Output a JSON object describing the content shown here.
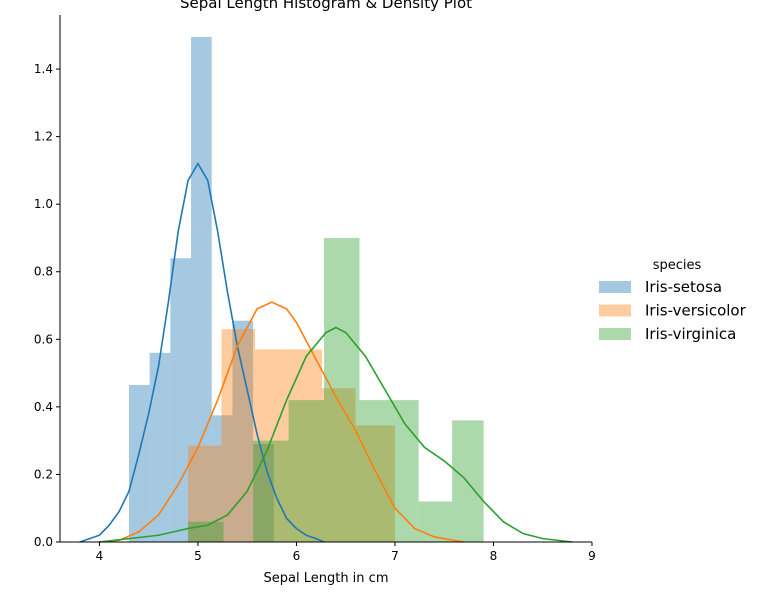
{
  "chart_data": {
    "type": "histogram-density",
    "title": "Sepal Length Histogram & Density Plot",
    "xlabel": "Sepal Length in cm",
    "ylabel": "",
    "xlim": [
      3.6,
      9.0
    ],
    "ylim": [
      0,
      1.56
    ],
    "xticks": [
      4,
      5,
      6,
      7,
      8,
      9
    ],
    "yticks": [
      0.0,
      0.2,
      0.4,
      0.6,
      0.8,
      1.0,
      1.2,
      1.4
    ],
    "grid": false,
    "legend": {
      "title": "species",
      "placement": "right"
    },
    "series": [
      {
        "name": "Iris-setosa",
        "color": "#1f77b4",
        "histogram": [
          {
            "x0": 4.3,
            "x1": 4.51,
            "density": 0.465
          },
          {
            "x0": 4.51,
            "x1": 4.72,
            "density": 0.56
          },
          {
            "x0": 4.72,
            "x1": 4.93,
            "density": 0.84
          },
          {
            "x0": 4.93,
            "x1": 5.14,
            "density": 1.495
          },
          {
            "x0": 5.14,
            "x1": 5.35,
            "density": 0.375
          },
          {
            "x0": 5.35,
            "x1": 5.56,
            "density": 0.655
          },
          {
            "x0": 5.56,
            "x1": 5.77,
            "density": 0.29
          }
        ],
        "density": [
          [
            3.8,
            0.0
          ],
          [
            3.9,
            0.01
          ],
          [
            4.0,
            0.02
          ],
          [
            4.1,
            0.05
          ],
          [
            4.2,
            0.09
          ],
          [
            4.3,
            0.15
          ],
          [
            4.4,
            0.26
          ],
          [
            4.5,
            0.38
          ],
          [
            4.6,
            0.52
          ],
          [
            4.7,
            0.71
          ],
          [
            4.8,
            0.92
          ],
          [
            4.9,
            1.07
          ],
          [
            5.0,
            1.12
          ],
          [
            5.1,
            1.07
          ],
          [
            5.2,
            0.92
          ],
          [
            5.3,
            0.74
          ],
          [
            5.4,
            0.58
          ],
          [
            5.5,
            0.45
          ],
          [
            5.6,
            0.32
          ],
          [
            5.7,
            0.21
          ],
          [
            5.8,
            0.13
          ],
          [
            5.9,
            0.07
          ],
          [
            6.0,
            0.04
          ],
          [
            6.1,
            0.02
          ],
          [
            6.2,
            0.01
          ],
          [
            6.28,
            0.0
          ]
        ]
      },
      {
        "name": "Iris-versicolor",
        "color": "#ff7f0e",
        "histogram": [
          {
            "x0": 4.9,
            "x1": 5.24,
            "density": 0.285
          },
          {
            "x0": 5.24,
            "x1": 5.58,
            "density": 0.63
          },
          {
            "x0": 5.58,
            "x1": 5.92,
            "density": 0.57
          },
          {
            "x0": 5.92,
            "x1": 6.26,
            "density": 0.57
          },
          {
            "x0": 6.26,
            "x1": 6.6,
            "density": 0.455
          },
          {
            "x0": 6.6,
            "x1": 7.0,
            "density": 0.345
          }
        ],
        "density": [
          [
            4.0,
            0.0
          ],
          [
            4.2,
            0.005
          ],
          [
            4.4,
            0.03
          ],
          [
            4.6,
            0.08
          ],
          [
            4.8,
            0.17
          ],
          [
            5.0,
            0.28
          ],
          [
            5.2,
            0.42
          ],
          [
            5.4,
            0.58
          ],
          [
            5.6,
            0.69
          ],
          [
            5.75,
            0.71
          ],
          [
            5.9,
            0.69
          ],
          [
            6.0,
            0.65
          ],
          [
            6.2,
            0.54
          ],
          [
            6.4,
            0.43
          ],
          [
            6.6,
            0.33
          ],
          [
            6.8,
            0.21
          ],
          [
            7.0,
            0.1
          ],
          [
            7.2,
            0.04
          ],
          [
            7.4,
            0.015
          ],
          [
            7.7,
            0.0
          ]
        ]
      },
      {
        "name": "Iris-virginica",
        "color": "#2ca02c",
        "histogram": [
          {
            "x0": 4.9,
            "x1": 5.26,
            "density": 0.06
          },
          {
            "x0": 5.56,
            "x1": 5.92,
            "density": 0.3
          },
          {
            "x0": 5.92,
            "x1": 6.28,
            "density": 0.42
          },
          {
            "x0": 6.28,
            "x1": 6.64,
            "density": 0.9
          },
          {
            "x0": 6.64,
            "x1": 7.24,
            "density": 0.42
          },
          {
            "x0": 7.24,
            "x1": 7.58,
            "density": 0.12
          },
          {
            "x0": 7.58,
            "x1": 7.9,
            "density": 0.36
          }
        ],
        "density": [
          [
            4.0,
            0.0
          ],
          [
            4.3,
            0.01
          ],
          [
            4.6,
            0.02
          ],
          [
            4.9,
            0.04
          ],
          [
            5.1,
            0.05
          ],
          [
            5.3,
            0.08
          ],
          [
            5.5,
            0.15
          ],
          [
            5.7,
            0.27
          ],
          [
            5.9,
            0.42
          ],
          [
            6.1,
            0.55
          ],
          [
            6.3,
            0.62
          ],
          [
            6.4,
            0.635
          ],
          [
            6.5,
            0.62
          ],
          [
            6.7,
            0.55
          ],
          [
            6.9,
            0.45
          ],
          [
            7.1,
            0.35
          ],
          [
            7.3,
            0.28
          ],
          [
            7.5,
            0.24
          ],
          [
            7.7,
            0.19
          ],
          [
            7.9,
            0.12
          ],
          [
            8.1,
            0.06
          ],
          [
            8.3,
            0.025
          ],
          [
            8.5,
            0.01
          ],
          [
            8.8,
            0.0
          ]
        ]
      }
    ]
  }
}
